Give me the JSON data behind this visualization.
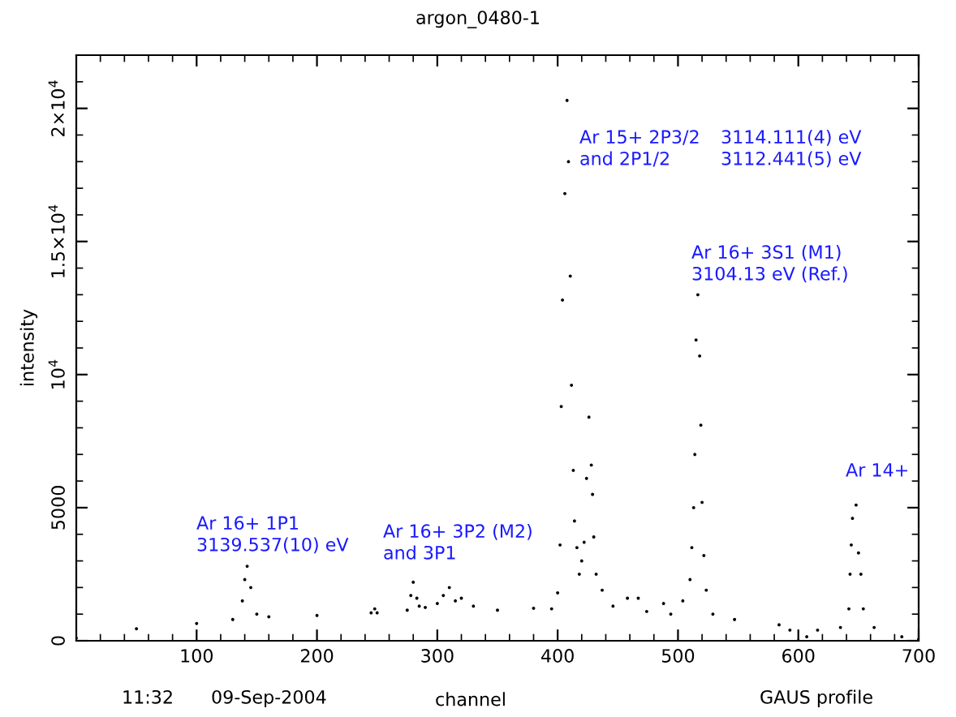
{
  "chart_data": {
    "type": "scatter",
    "title": "argon_0480-1",
    "xlabel": "channel",
    "ylabel": "intensity",
    "xlim": [
      0,
      700
    ],
    "xticks": [
      100,
      200,
      300,
      400,
      500,
      600,
      700
    ],
    "ylim": [
      0,
      22000
    ],
    "yticks": [
      0,
      5000,
      {
        "value": 10000,
        "label": "10$^{4}$"
      },
      {
        "value": 15000,
        "label": "1.5×10$^{4}$"
      },
      {
        "value": 20000,
        "label": "2×10$^{4}$"
      }
    ],
    "grid": false,
    "legend": false,
    "x": [
      0,
      50,
      100,
      130,
      138,
      140,
      142,
      145,
      150,
      160,
      200,
      245,
      248,
      250,
      275,
      278,
      280,
      283,
      285,
      290,
      300,
      305,
      310,
      315,
      320,
      330,
      350,
      380,
      395,
      400,
      402,
      403,
      404,
      406,
      407.8,
      409,
      410.5,
      411.5,
      413,
      414,
      416,
      418,
      420,
      422,
      424,
      426,
      428,
      429,
      430,
      432,
      437,
      446,
      458,
      467,
      474,
      488,
      494,
      504,
      510,
      511.5,
      513,
      514,
      515,
      516.5,
      518,
      519,
      520,
      521.5,
      523.5,
      529,
      547,
      584,
      593,
      600,
      607,
      616,
      635,
      642,
      643,
      644,
      645,
      648,
      650,
      652,
      654,
      663,
      686,
      700
    ],
    "series": [
      {
        "color": "#000000",
        "values": [
          100,
          450,
          650,
          800,
          1500,
          2300,
          2800,
          2000,
          1000,
          900,
          950,
          1050,
          1200,
          1050,
          1150,
          1700,
          2200,
          1600,
          1300,
          1250,
          1400,
          1700,
          2000,
          1500,
          1600,
          1300,
          1150,
          1220,
          1200,
          1800,
          3600,
          8800,
          12800,
          16800,
          20300,
          18000,
          13700,
          9600,
          6400,
          4500,
          3500,
          2500,
          3000,
          3700,
          6100,
          8400,
          6600,
          5500,
          3900,
          2500,
          1900,
          1300,
          1600,
          1600,
          1100,
          1400,
          1000,
          1500,
          2300,
          3500,
          5000,
          7000,
          11300,
          13000,
          10700,
          8100,
          5200,
          3200,
          1900,
          1000,
          800,
          600,
          400,
          0,
          150,
          400,
          500,
          1200,
          2500,
          3600,
          4600,
          5100,
          3300,
          2500,
          1200,
          500,
          150,
          60
        ]
      }
    ],
    "annotations": [
      "Ar 16+ 1P1\n3139.537(10) eV",
      "Ar 16+ 3P2 (M2)\nand 3P1",
      "Ar 15+ 2P3/2\nand 2P1/2",
      "3114.111(4) eV\n3112.441(5) eV",
      "Ar 16+ 3S1 (M1)\n3104.13 eV (Ref.)",
      "Ar 14+",
      "11:32",
      "09-Sep-2004",
      "GAUS profile"
    ]
  }
}
